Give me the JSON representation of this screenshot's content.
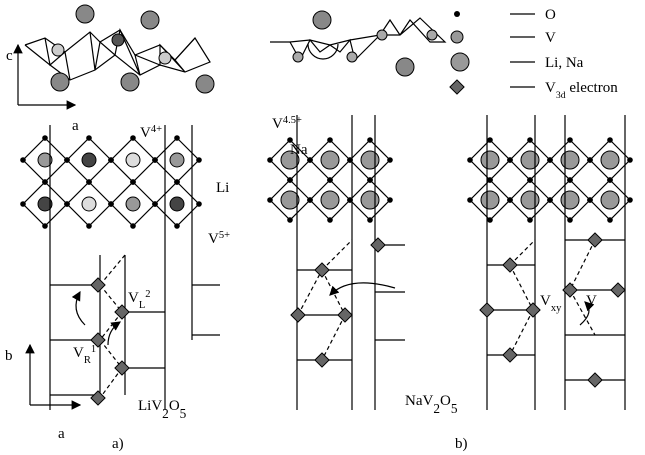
{
  "top_axes": {
    "vertical": "c",
    "horizontal": "a"
  },
  "legend": [
    {
      "text": "O"
    },
    {
      "text": "V"
    },
    {
      "text": "Li, Na"
    },
    {
      "base": "V",
      "sub": "3d",
      "rest": " electron"
    }
  ],
  "panel_a": {
    "labels": [
      {
        "base": "V",
        "sup": "4+"
      },
      {
        "text": "Li"
      },
      {
        "base": "V",
        "sup": "5+"
      },
      {
        "base": "V",
        "sub": "L",
        "sup": "2"
      },
      {
        "base": "V",
        "sub": "R",
        "sup": "1"
      }
    ],
    "axes": {
      "vertical": "b",
      "horizontal": "a"
    },
    "formula": [
      "LiV",
      "2",
      "O",
      "5"
    ],
    "caption": "a)"
  },
  "panel_b": {
    "labels": [
      {
        "base": "V",
        "sup": "4.5+"
      },
      {
        "text": "Na"
      },
      {
        "text": "V"
      },
      {
        "base": "V",
        "sub": "xy"
      }
    ],
    "formula": [
      "NaV",
      "2",
      "O",
      "5"
    ],
    "caption": "b)"
  }
}
